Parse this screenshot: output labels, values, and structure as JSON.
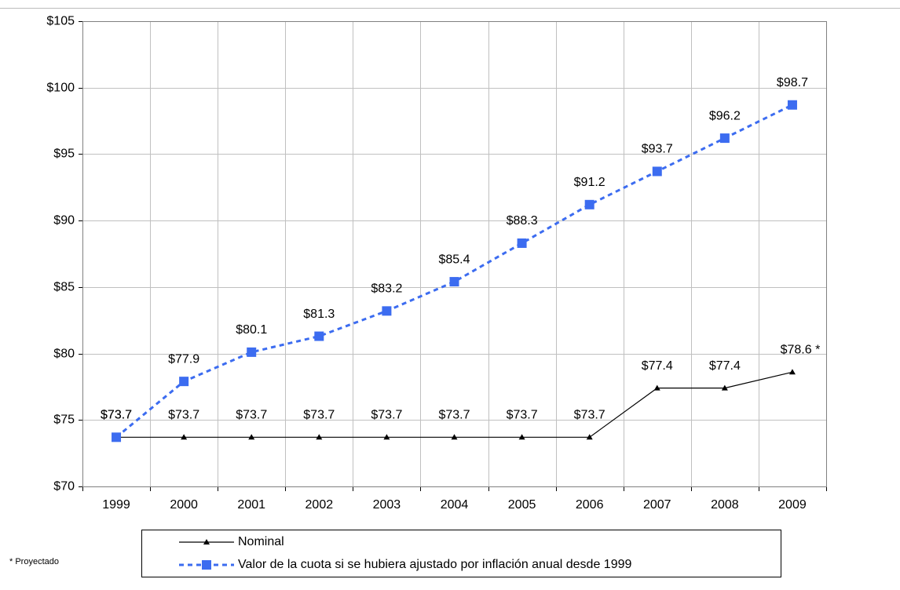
{
  "chart_data": {
    "type": "line",
    "categories": [
      "1999",
      "2000",
      "2001",
      "2002",
      "2003",
      "2004",
      "2005",
      "2006",
      "2007",
      "2008",
      "2009"
    ],
    "series": [
      {
        "name": "Nominal",
        "color": "#000000",
        "marker": "triangle",
        "values": [
          73.7,
          73.7,
          73.7,
          73.7,
          73.7,
          73.7,
          73.7,
          73.7,
          77.4,
          77.4,
          78.6
        ],
        "value_labels": [
          "$73.7",
          "$73.7",
          "$73.7",
          "$73.7",
          "$73.7",
          "$73.7",
          "$73.7",
          "$73.7",
          "$77.4",
          "$77.4",
          "$78.6 *"
        ]
      },
      {
        "name": "Valor de la cuota si se hubiera ajustado por inflación anual desde 1999",
        "color": "#3c6cf0",
        "marker": "square",
        "dashed": true,
        "values": [
          73.7,
          77.9,
          80.1,
          81.3,
          83.2,
          85.4,
          88.3,
          91.2,
          93.7,
          96.2,
          98.7
        ],
        "value_labels": [
          "$73.7",
          "$77.9",
          "$80.1",
          "$81.3",
          "$83.2",
          "$85.4",
          "$88.3",
          "$91.2",
          "$93.7",
          "$96.2",
          "$98.7"
        ]
      }
    ],
    "ylim": [
      70,
      105
    ],
    "yticks": [
      {
        "value": 70,
        "label": "$70"
      },
      {
        "value": 75,
        "label": "$75"
      },
      {
        "value": 80,
        "label": "$80"
      },
      {
        "value": 85,
        "label": "$85"
      },
      {
        "value": 90,
        "label": "$90"
      },
      {
        "value": 95,
        "label": "$95"
      },
      {
        "value": 100,
        "label": "$100"
      },
      {
        "value": 105,
        "label": "$105"
      }
    ],
    "grid": true,
    "legend": "bottom",
    "footnote": "* Proyectado"
  }
}
